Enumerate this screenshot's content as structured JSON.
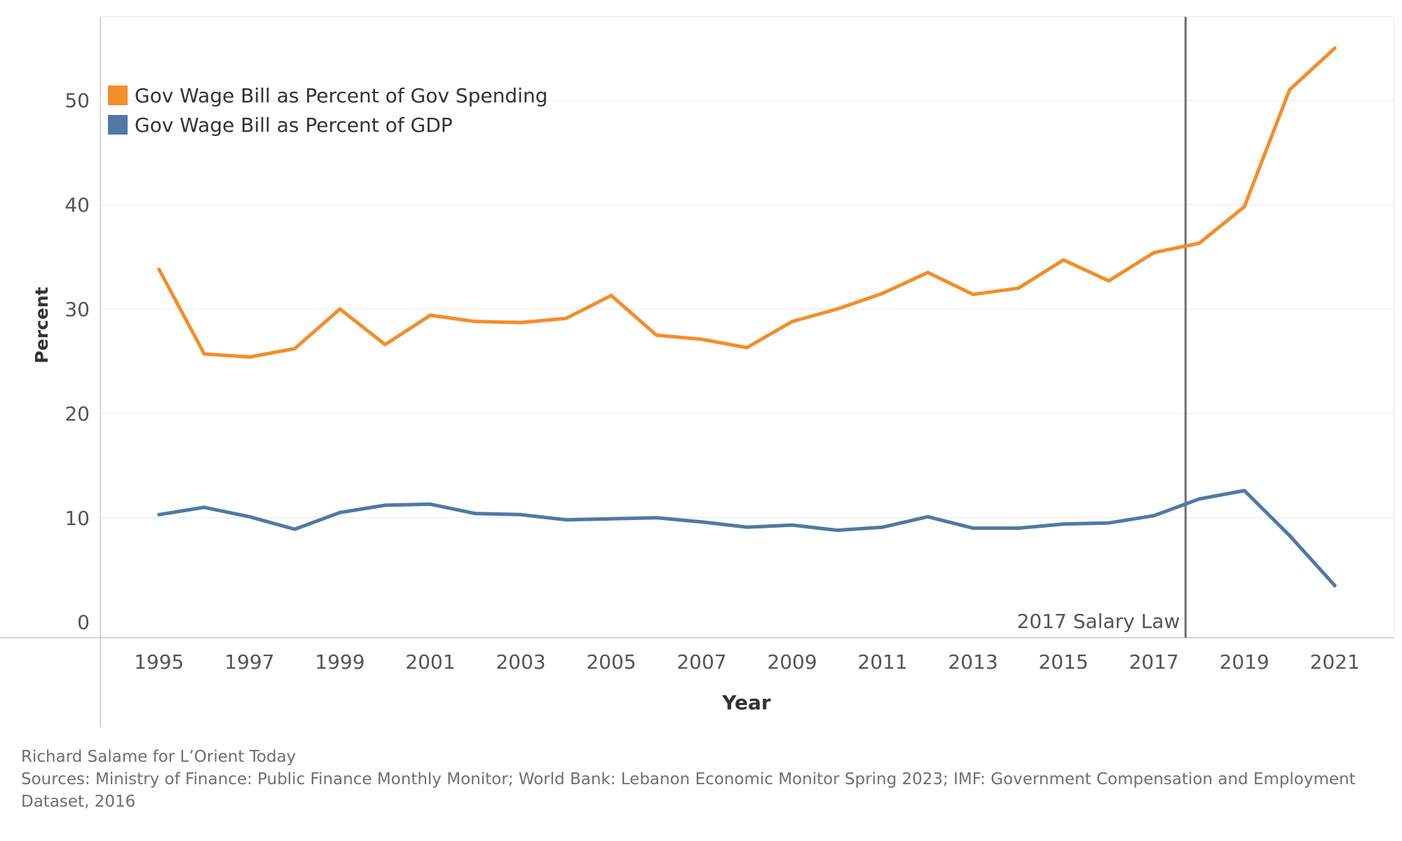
{
  "chart_data": {
    "type": "line",
    "xlabel": "Year",
    "ylabel": "Percent",
    "xlim": [
      1993.7,
      2022.3
    ],
    "ylim": [
      -1.5,
      58
    ],
    "x_ticks": [
      1995,
      1997,
      1999,
      2001,
      2003,
      2005,
      2007,
      2009,
      2011,
      2013,
      2015,
      2017,
      2019,
      2021
    ],
    "y_ticks": [
      0,
      10,
      20,
      30,
      40,
      50
    ],
    "grid": "horizontal",
    "legend_position": "top-left",
    "x": [
      1995,
      1996,
      1997,
      1998,
      1999,
      2000,
      2001,
      2002,
      2003,
      2004,
      2005,
      2006,
      2007,
      2008,
      2009,
      2010,
      2011,
      2012,
      2013,
      2014,
      2015,
      2016,
      2017,
      2018,
      2019,
      2020,
      2021
    ],
    "series": [
      {
        "name": "Gov Wage Bill as Percent of Gov Spending",
        "color": "#f28e2b",
        "values": [
          33.8,
          25.7,
          25.4,
          26.2,
          30.0,
          26.6,
          29.4,
          28.8,
          28.7,
          29.1,
          31.3,
          27.5,
          27.1,
          26.3,
          28.8,
          30.0,
          31.5,
          33.5,
          31.4,
          32.0,
          34.7,
          32.7,
          35.4,
          36.3,
          39.8,
          51.0,
          55.0
        ]
      },
      {
        "name": "Gov Wage Bill as Percent of GDP",
        "color": "#4e79a7",
        "values": [
          10.3,
          11.0,
          10.1,
          8.9,
          10.5,
          11.2,
          11.3,
          10.4,
          10.3,
          9.8,
          9.9,
          10.0,
          9.6,
          9.1,
          9.3,
          8.8,
          9.1,
          10.1,
          9.0,
          9.0,
          9.4,
          9.5,
          10.2,
          11.8,
          12.6,
          8.3,
          3.5
        ]
      }
    ],
    "annotations": [
      {
        "text": "2017 Salary Law",
        "x": 2017.7,
        "color": "#555555"
      }
    ]
  },
  "footer": {
    "credit": "Richard Salame for L’Orient Today",
    "sources": "Sources: Ministry of Finance: Public Finance Monthly Monitor; World Bank: Lebanon Economic Monitor Spring 2023; IMF: Government Compensation and Employment Dataset, 2016"
  }
}
